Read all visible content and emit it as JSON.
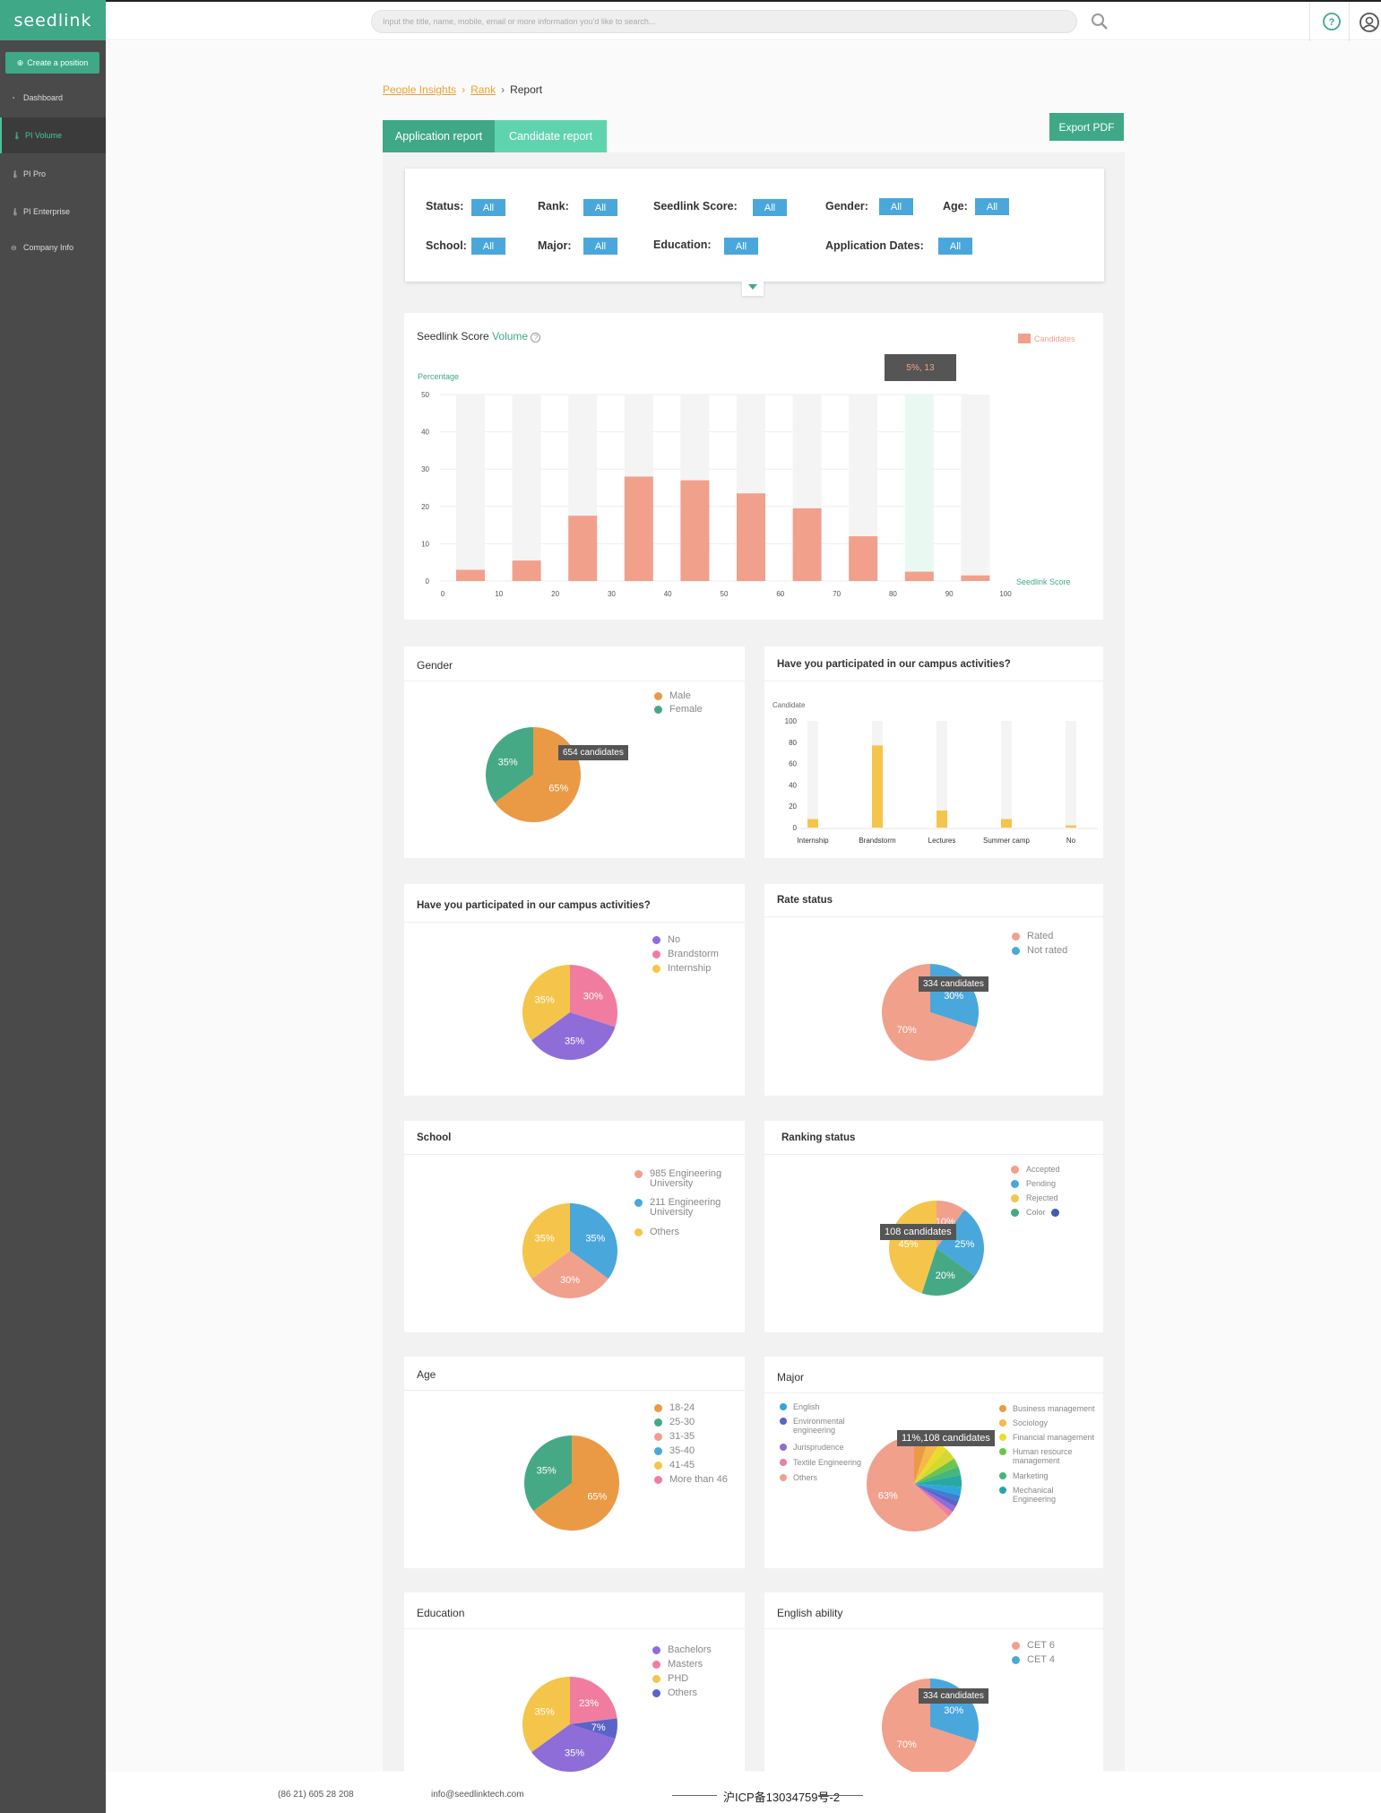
{
  "app": {
    "logo": "seedlink"
  },
  "sidebar": {
    "create_label": "Create a position",
    "items": [
      {
        "label": "Dashboard"
      },
      {
        "label": "PI Volume"
      },
      {
        "label": "PI Pro"
      },
      {
        "label": "PI Enterprise"
      },
      {
        "label": "Company Info"
      }
    ]
  },
  "search": {
    "placeholder": "Input the title, name, mobile, email or more information you'd like to search..."
  },
  "breadcrumb": {
    "a": "People Insights",
    "b": "Rank",
    "c": "Report"
  },
  "tabs": {
    "application": "Application report",
    "candidate": "Candidate report"
  },
  "export_label": "Export PDF",
  "filters": {
    "status": "Status:",
    "rank": "Rank:",
    "score": "Seedlink Score:",
    "gender": "Gender:",
    "age": "Age:",
    "school": "School:",
    "major": "Major:",
    "education": "Education:",
    "dates": "Application Dates:",
    "all": "All"
  },
  "score_chart": {
    "title": "Seedlink Score",
    "title2": "Volume",
    "legend": "Candidates",
    "ylabel": "Percentage",
    "xlabel": "Seedlink Score",
    "tooltip": "5%, 13"
  },
  "gender": {
    "title": "Gender",
    "legend": [
      "Male",
      "Female"
    ],
    "tooltip": "654 candidates"
  },
  "campus_bar": {
    "title": "Have you participated in our campus activities?",
    "ylabel": "Candidate",
    "tooltip": ""
  },
  "campus_pie": {
    "title": "Have you participated in our campus activities?",
    "legend": [
      "No",
      "Brandstorm",
      "Internship"
    ]
  },
  "rate": {
    "title": "Rate status",
    "legend": [
      "Rated",
      "Not rated"
    ],
    "tooltip": "334 candidates"
  },
  "school": {
    "title": "School",
    "legend": [
      "985 Engineering University",
      "211 Engineering University",
      "Others"
    ]
  },
  "ranking": {
    "title": "Ranking status",
    "legend": [
      "Accepted",
      "Pending",
      "Rejected",
      "Color"
    ],
    "tooltip": "108 candidates",
    "hidden_label": "45%"
  },
  "age": {
    "title": "Age",
    "legend": [
      "18-24",
      "25-30",
      "31-35",
      "35-40",
      "41-45",
      "More than 46"
    ]
  },
  "major": {
    "title": "Major",
    "legend_left": [
      "English",
      "Environmental engineering",
      "Jurisprudence",
      "Textile Engineering",
      "Others"
    ],
    "legend_right": [
      "Business management",
      "Sociology",
      "Financial management",
      "Human resource management",
      "Marketing",
      "Mechanical Engineering"
    ],
    "tooltip": "11%,108 candidates"
  },
  "education": {
    "title": "Education",
    "legend": [
      "Bachelors",
      "Masters",
      "PHD",
      "Others"
    ]
  },
  "english": {
    "title": "English ability",
    "legend": [
      "CET 6",
      "CET 4"
    ],
    "tooltip": "334 candidates"
  },
  "footer": {
    "phone": "(86 21)  605 28 208",
    "email": "info@seedlinktech.com",
    "icp": "沪ICP备13034759号-2"
  },
  "colors": {
    "green": "#3ea887",
    "blue": "#4aa7dc",
    "salmon": "#f1a08c",
    "orange": "#ea9a45",
    "teal": "#46a986",
    "yellow": "#f5c54b",
    "purple": "#8e6dd8",
    "pink": "#f07da0"
  },
  "chart_data": [
    {
      "type": "bar",
      "title": "Seedlink Score Volume",
      "xlabel": "Seedlink Score",
      "ylabel": "Percentage",
      "ylim": [
        0,
        50
      ],
      "x_ticks": [
        0,
        10,
        20,
        30,
        40,
        50,
        60,
        70,
        80,
        90,
        100
      ],
      "y_ticks": [
        0,
        10,
        20,
        30,
        40,
        50
      ],
      "series": [
        {
          "name": "Candidates",
          "values": [
            3,
            5.5,
            17.5,
            28,
            27,
            23.5,
            19.5,
            12,
            2.5,
            1.5
          ]
        }
      ],
      "highlight_index": 8
    },
    {
      "type": "pie",
      "title": "Gender",
      "series": [
        {
          "values": [
            65,
            35
          ],
          "labels": [
            "Male",
            "Female"
          ],
          "display": [
            "65%",
            "35%"
          ]
        }
      ]
    },
    {
      "type": "bar",
      "title": "Have you participated in our campus activities?",
      "ylabel": "Candidate",
      "categories": [
        "Internship",
        "Brandstorm",
        "Lectures",
        "Summer camp",
        "No"
      ],
      "values": [
        8,
        77,
        16,
        8,
        2
      ],
      "ylim": [
        0,
        100
      ],
      "y_ticks": [
        0,
        20,
        40,
        60,
        80,
        100
      ]
    },
    {
      "type": "pie",
      "title": "Have you participated in our campus activities?",
      "series": [
        {
          "values": [
            30,
            35,
            35
          ],
          "labels": [
            "Brandstorm",
            "No",
            "Internship"
          ],
          "display": [
            "30%",
            "35%",
            "35%"
          ]
        }
      ]
    },
    {
      "type": "pie",
      "title": "Rate status",
      "series": [
        {
          "values": [
            30,
            70
          ],
          "labels": [
            "Not rated",
            "Rated"
          ],
          "display": [
            "30%",
            "70%"
          ]
        }
      ]
    },
    {
      "type": "pie",
      "title": "School",
      "series": [
        {
          "values": [
            35,
            30,
            35
          ],
          "labels": [
            "211 Engineering University",
            "985 Engineering University",
            "Others"
          ],
          "display": [
            "35%",
            "30%",
            "35%"
          ]
        }
      ]
    },
    {
      "type": "pie",
      "title": "Ranking status",
      "series": [
        {
          "values": [
            10,
            25,
            20,
            45
          ],
          "labels": [
            "Accepted",
            "Pending",
            "Color",
            "Rejected"
          ],
          "display": [
            "10%",
            "25%",
            "20%",
            "45%"
          ]
        }
      ]
    },
    {
      "type": "pie",
      "title": "Age",
      "series": [
        {
          "values": [
            65,
            35
          ],
          "labels": [
            "18-24",
            "25-30"
          ],
          "display": [
            "65%",
            "35%"
          ]
        }
      ]
    },
    {
      "type": "pie",
      "title": "Major",
      "series": [
        {
          "values": [
            5,
            4,
            3,
            4,
            3,
            3,
            4,
            3,
            2,
            2,
            2,
            2,
            63
          ],
          "labels": [
            "Business management",
            "Sociology",
            "Financial management",
            "",
            "Human resource management",
            "Marketing",
            "Mechanical Engineering",
            "English",
            "",
            "Environmental engineering",
            "Jurisprudence",
            "Textile Engineering",
            "Others"
          ],
          "display": [
            "",
            "",
            "",
            "",
            "",
            "",
            "",
            "",
            "",
            "",
            "",
            "",
            "63%"
          ]
        }
      ]
    },
    {
      "type": "pie",
      "title": "Education",
      "series": [
        {
          "values": [
            23,
            7,
            35,
            35
          ],
          "labels": [
            "Masters",
            "Others",
            "Bachelors",
            "PHD"
          ],
          "display": [
            "23%",
            "7%",
            "35%",
            "35%"
          ]
        }
      ]
    },
    {
      "type": "pie",
      "title": "English ability",
      "series": [
        {
          "values": [
            30,
            70
          ],
          "labels": [
            "CET 4",
            "CET 6"
          ],
          "display": [
            "30%",
            "70%"
          ]
        }
      ]
    }
  ]
}
